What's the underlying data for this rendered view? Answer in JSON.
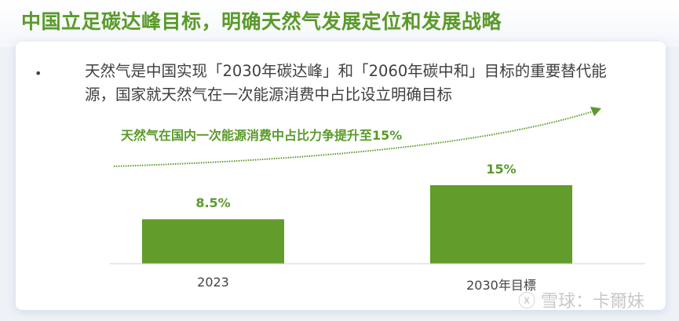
{
  "title": "中国立足碳达峰目标，明确天然气发展定位和发展战略",
  "bullet": "天然气是中国实现「2030年碳达峰」和「2060年碳中和」目标的重要替代能源，国家就天然气在一次能源消费中占比设立明确目标",
  "bullet_marker": "•",
  "annotation": "天然气在国内一次能源消费中占比力争提升至15%",
  "watermark": "雪球：卡爾妹",
  "colors": {
    "accent": "#5a9a2a",
    "bar": "#629c2a",
    "text": "#404040"
  },
  "chart_data": {
    "type": "bar",
    "categories": [
      "2023",
      "2030年目標"
    ],
    "values": [
      8.5,
      15
    ],
    "data_labels": [
      "8.5%",
      "15%"
    ],
    "ylim": [
      0,
      15
    ],
    "grid": false,
    "legend": "none",
    "trend_arrow": "dotted upward arrow"
  }
}
